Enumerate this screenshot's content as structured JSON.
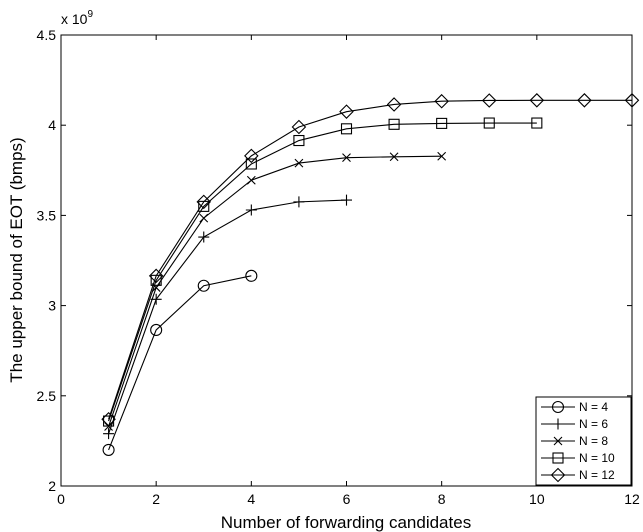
{
  "chart_data": {
    "type": "line",
    "title": "",
    "xlabel": "Number of forwarding candidates",
    "ylabel": "The upper bound of EOT (bmps)",
    "y_scale_label": "x 10",
    "y_scale_exponent": "9",
    "xlim": [
      0,
      12
    ],
    "ylim": [
      2,
      4.5
    ],
    "x_ticks": [
      "0",
      "2",
      "4",
      "6",
      "8",
      "10",
      "12"
    ],
    "y_ticks": [
      "2",
      "2.5",
      "3",
      "3.5",
      "4",
      "4.5"
    ],
    "y_tick_values": [
      2,
      2.5,
      3,
      3.5,
      4,
      4.5
    ],
    "x_tick_values": [
      0,
      2,
      4,
      6,
      8,
      10,
      12
    ],
    "grid": false,
    "legend_position": "bottom-right",
    "line_color": "#000000",
    "series": [
      {
        "name": "N = 4",
        "marker": "circle",
        "x": [
          1,
          2,
          3,
          4
        ],
        "y": [
          2.2,
          2.865,
          3.11,
          3.165
        ]
      },
      {
        "name": "N = 6",
        "marker": "plus",
        "x": [
          1,
          2,
          3,
          4,
          5,
          6
        ],
        "y": [
          2.29,
          3.035,
          3.38,
          3.53,
          3.575,
          3.585
        ]
      },
      {
        "name": "N = 8",
        "marker": "x",
        "x": [
          1,
          2,
          3,
          4,
          5,
          6,
          7,
          8
        ],
        "y": [
          2.33,
          3.1,
          3.485,
          3.695,
          3.79,
          3.82,
          3.825,
          3.828
        ]
      },
      {
        "name": "N = 10",
        "marker": "square",
        "x": [
          1,
          2,
          3,
          4,
          5,
          6,
          7,
          8,
          9,
          10
        ],
        "y": [
          2.36,
          3.14,
          3.55,
          3.785,
          3.915,
          3.98,
          4.005,
          4.01,
          4.012,
          4.012
        ]
      },
      {
        "name": "N = 12",
        "marker": "diamond",
        "x": [
          1,
          2,
          3,
          4,
          5,
          6,
          7,
          8,
          9,
          10,
          11,
          12
        ],
        "y": [
          2.37,
          3.165,
          3.575,
          3.83,
          3.99,
          4.075,
          4.115,
          4.133,
          4.137,
          4.138,
          4.138,
          4.138
        ]
      }
    ]
  }
}
